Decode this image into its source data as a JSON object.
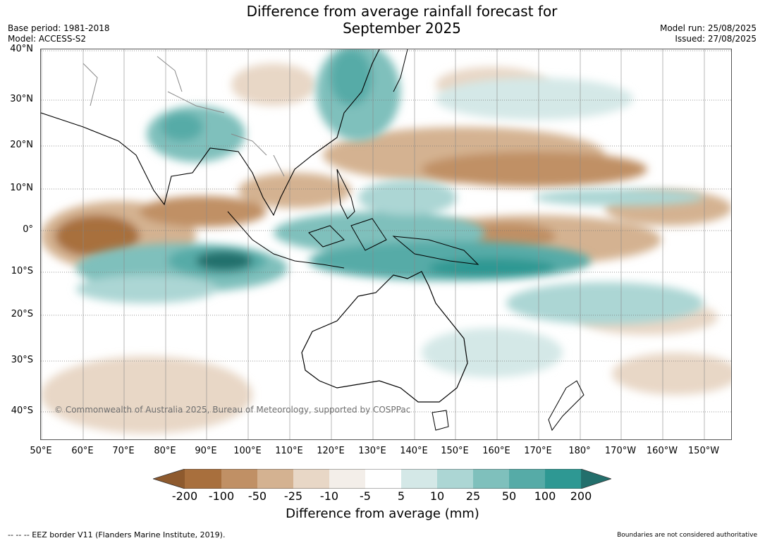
{
  "title_line1": "Difference from average rainfall forecast for",
  "title_line2": "September 2025",
  "base_period": "Base period: 1981-2018",
  "model": "Model: ACCESS-S2",
  "model_run": "Model run: 25/08/2025",
  "issued": "Issued: 27/08/2025",
  "lat_labels": [
    "40°N",
    "30°N",
    "20°N",
    "10°N",
    "0°",
    "10°S",
    "20°S",
    "30°S",
    "40°S"
  ],
  "lon_labels": [
    "50°E",
    "60°E",
    "70°E",
    "80°E",
    "90°E",
    "100°E",
    "110°E",
    "120°E",
    "130°E",
    "140°E",
    "150°E",
    "160°E",
    "170°E",
    "180°",
    "170°W",
    "160°W",
    "150°W"
  ],
  "copyright": "© Commonwealth of Australia 2025, Bureau of Meteorology, supported by COSPPac",
  "colorbar": {
    "ticks": [
      "-200",
      "-100",
      "-50",
      "-25",
      "-10",
      "-5",
      "5",
      "10",
      "25",
      "50",
      "100",
      "200"
    ],
    "colors": [
      "#8e5a2e",
      "#a86f3d",
      "#c09065",
      "#d4b291",
      "#e8d7c6",
      "#f3eee9",
      "#ffffff",
      "#d4e8e7",
      "#acd6d4",
      "#7fc0bc",
      "#56aba7",
      "#2e9893",
      "#236f6c"
    ],
    "title": "Difference from average (mm)"
  },
  "footer_left": "--  --  -- EEZ border V11 (Flanders Marine Institute, 2019).",
  "footer_right": "Boundaries are not considered authoritative"
}
